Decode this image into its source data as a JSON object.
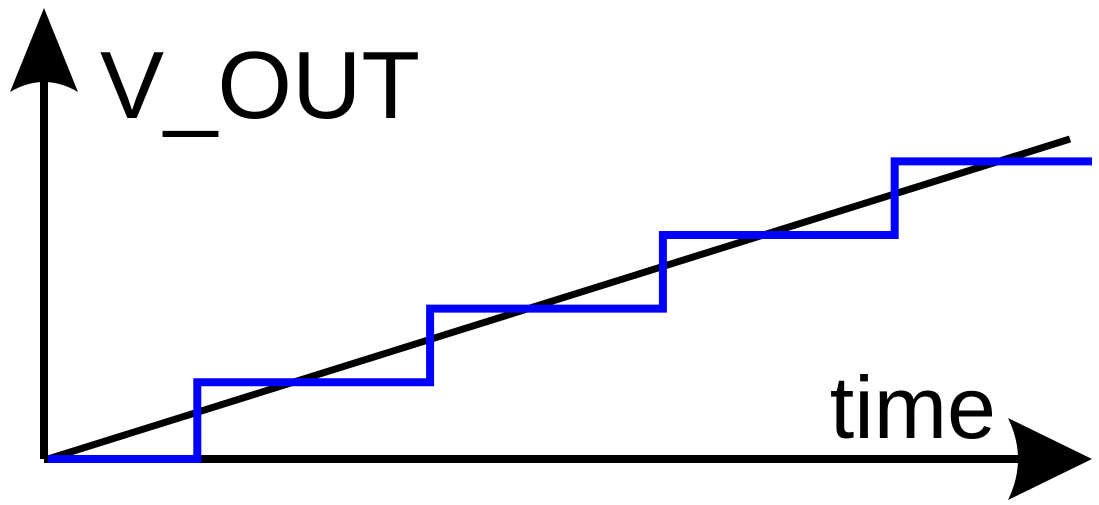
{
  "labels": {
    "y_axis": "V_OUT",
    "x_axis": "time"
  },
  "colors": {
    "axis": "#000000",
    "ideal_line": "#000000",
    "staircase": "#0000ff",
    "background": "#ffffff"
  },
  "chart_data": {
    "type": "line",
    "xlabel": "time",
    "ylabel": "V_OUT",
    "grid": false,
    "series": [
      {
        "role": "ideal-ramp",
        "style": "straight-line",
        "x": [
          0,
          1
        ],
        "y": [
          0,
          1
        ]
      },
      {
        "role": "quantized-staircase",
        "style": "step",
        "step_x": [
          0,
          0.143,
          0.366,
          0.589,
          0.811,
          1.0
        ],
        "step_y": [
          0,
          0.24,
          0.47,
          0.7,
          0.93
        ]
      }
    ]
  }
}
